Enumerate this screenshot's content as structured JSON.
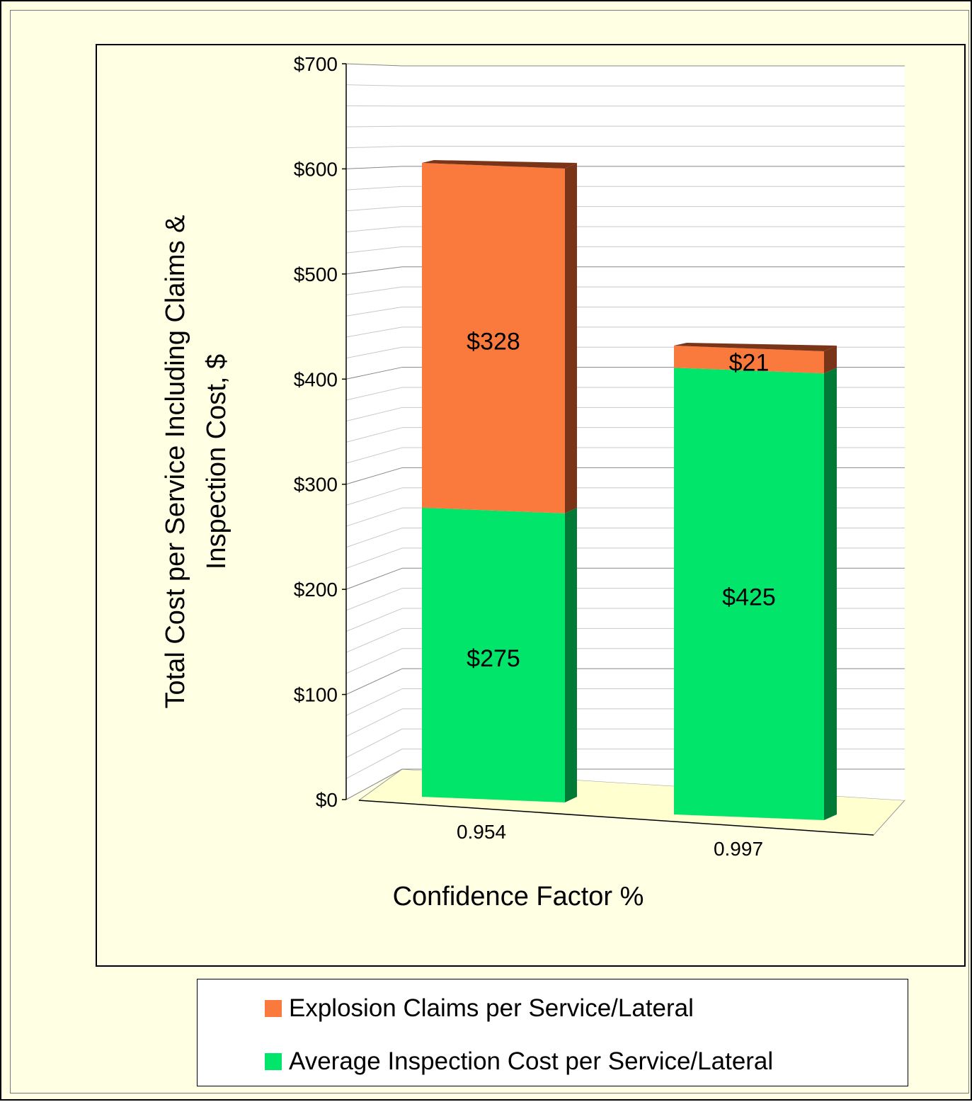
{
  "colors": {
    "frame_background": "#ffffe3",
    "explosion_front": "#f97a3c",
    "explosion_side": "#7a3518",
    "inspection_front": "#00e56a",
    "inspection_side": "#007a36",
    "floor": "#ffffd0"
  },
  "chart_data": {
    "type": "bar",
    "stacked": true,
    "three_d": true,
    "categories": [
      "0.954",
      "0.997"
    ],
    "series": [
      {
        "name": "Average Inspection Cost per Service/Lateral",
        "values": [
          275,
          425
        ],
        "data_labels": [
          "$275",
          "$425"
        ]
      },
      {
        "name": "Explosion Claims per Service/Lateral",
        "values": [
          328,
          21
        ],
        "data_labels": [
          "$328",
          "$21"
        ]
      }
    ],
    "xlabel": "Confidence Factor %",
    "ylabel": "Total Cost per Service Including Claims & Inspection Cost, $",
    "ylim": [
      0,
      700
    ],
    "yticks": [
      0,
      100,
      200,
      300,
      400,
      500,
      600,
      700
    ],
    "ytick_labels": [
      "$0",
      "$100",
      "$200",
      "$300",
      "$400",
      "$500",
      "$600",
      "$700"
    ],
    "grid": true,
    "legend_position": "bottom"
  },
  "legend": {
    "items": [
      {
        "label": "Explosion Claims per Service/Lateral",
        "color": "#f97a3c"
      },
      {
        "label": "Average Inspection Cost per Service/Lateral",
        "color": "#00e56a"
      }
    ]
  }
}
